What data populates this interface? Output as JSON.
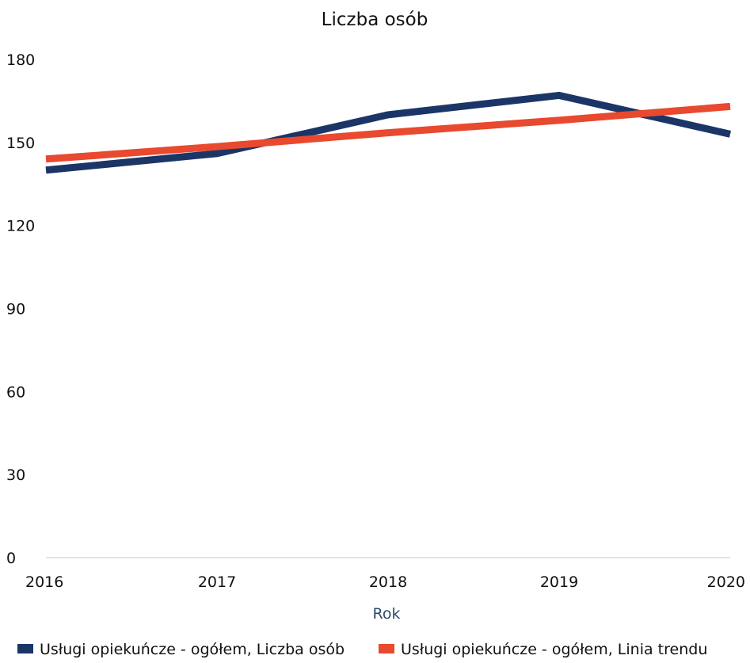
{
  "chart_data": {
    "type": "line",
    "title": "Liczba osób",
    "xlabel": "Rok",
    "ylabel": "",
    "x": [
      "2016",
      "2017",
      "2018",
      "2019",
      "2020"
    ],
    "ylim": [
      0,
      180
    ],
    "yticks": [
      0,
      30,
      60,
      90,
      120,
      150,
      180
    ],
    "grid": false,
    "legend_position": "bottom",
    "series": [
      {
        "name": "Usługi opiekuńcze - ogółem, Liczba osób",
        "color": "#1b3566",
        "values": [
          140,
          146,
          160,
          167,
          153
        ]
      },
      {
        "name": "Usługi opiekuńcze - ogółem, Linia trendu",
        "color": "#e8492f",
        "values": [
          144,
          148.5,
          153.5,
          158,
          163
        ]
      }
    ]
  }
}
